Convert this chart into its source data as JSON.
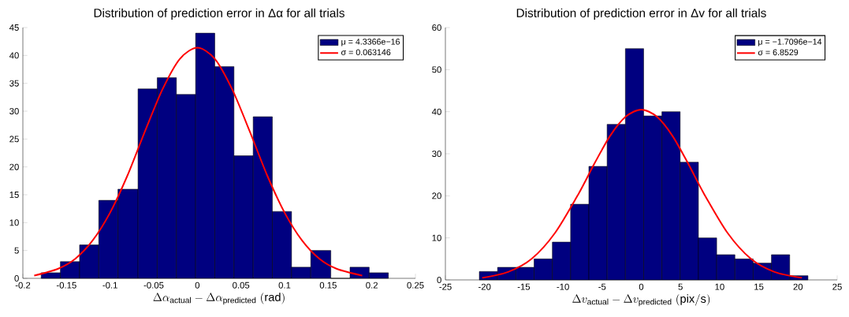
{
  "chart_data": [
    {
      "type": "histogram",
      "title": "Distribution of prediction error in Δα for all trials",
      "xlabel": "\\Delta\\alpha_{\\mathrm{actual}} - \\Delta\\alpha_{\\mathrm{predicted}}\\ \\mathrm{(rad)}",
      "xlim": [
        -0.2,
        0.25
      ],
      "ylim": [
        0,
        45
      ],
      "xticks": [
        -0.2,
        -0.15,
        -0.1,
        -0.05,
        0,
        0.05,
        0.1,
        0.15,
        0.2,
        0.25
      ],
      "yticks": [
        0,
        5,
        10,
        15,
        20,
        25,
        30,
        35,
        40,
        45
      ],
      "legend": "top right",
      "series": [
        {
          "name": "μ = 4.3366e−16",
          "color": "#000080",
          "bins": [
            -0.179,
            -0.157,
            -0.135,
            -0.113,
            -0.091,
            -0.068,
            -0.046,
            -0.024,
            -0.002,
            0.02,
            0.042,
            0.064,
            0.086,
            0.108,
            0.13,
            0.153,
            0.175,
            0.197,
            0.219
          ],
          "values": [
            1,
            3,
            6,
            14,
            16,
            34,
            36,
            33,
            44,
            38,
            22,
            29,
            12,
            2,
            5,
            0,
            2,
            1
          ]
        },
        {
          "name": "σ = 0.063146",
          "type": "line",
          "color": "#ff0000",
          "x": [
            -0.187,
            -0.16,
            -0.14,
            -0.12,
            -0.1,
            -0.08,
            -0.06,
            -0.04,
            -0.02,
            0,
            0.02,
            0.04,
            0.06,
            0.08,
            0.1,
            0.12,
            0.14,
            0.16,
            0.189
          ],
          "values": [
            0.5,
            1.7,
            3.5,
            6.8,
            11.8,
            18.5,
            26.4,
            33.9,
            39.4,
            41.4,
            39.4,
            33.9,
            26.4,
            18.5,
            11.8,
            6.8,
            3.5,
            1.7,
            0.5
          ]
        }
      ]
    },
    {
      "type": "histogram",
      "title": "Distribution of prediction error in Δv for all trials",
      "xlabel": "\\Delta v_{\\mathrm{actual}} - \\Delta v_{\\mathrm{predicted}}\\ \\mathrm{(pix/s)}",
      "xlim": [
        -25,
        25
      ],
      "ylim": [
        0,
        60
      ],
      "xticks": [
        -25,
        -20,
        -15,
        -10,
        -5,
        0,
        5,
        10,
        15,
        20,
        25
      ],
      "yticks": [
        0,
        10,
        20,
        30,
        40,
        50,
        60
      ],
      "legend": "top right",
      "series": [
        {
          "name": "μ = −1.7096e−14",
          "color": "#000080",
          "bins": [
            -20.67,
            -18.34,
            -16.01,
            -13.68,
            -11.35,
            -9.02,
            -6.69,
            -4.36,
            -2.03,
            0.3,
            2.63,
            4.96,
            7.29,
            9.62,
            11.95,
            14.28,
            16.61,
            18.94,
            21.27
          ],
          "values": [
            2,
            3,
            3,
            5,
            9,
            18,
            27,
            37,
            55,
            39,
            40,
            28,
            10,
            6,
            5,
            4,
            6,
            1
          ]
        },
        {
          "name": "σ = 6.8529",
          "type": "line",
          "color": "#ff0000",
          "x": [
            -20.3,
            -17,
            -14,
            -11,
            -8,
            -6,
            -4,
            -2,
            0,
            2,
            4,
            6,
            8,
            11,
            14,
            17,
            20.5
          ],
          "values": [
            0.5,
            1.9,
            5.0,
            11.2,
            20.5,
            27.6,
            34.2,
            38.8,
            40.5,
            38.8,
            34.2,
            27.6,
            20.5,
            11.2,
            5.0,
            1.9,
            0.5
          ]
        }
      ]
    }
  ]
}
